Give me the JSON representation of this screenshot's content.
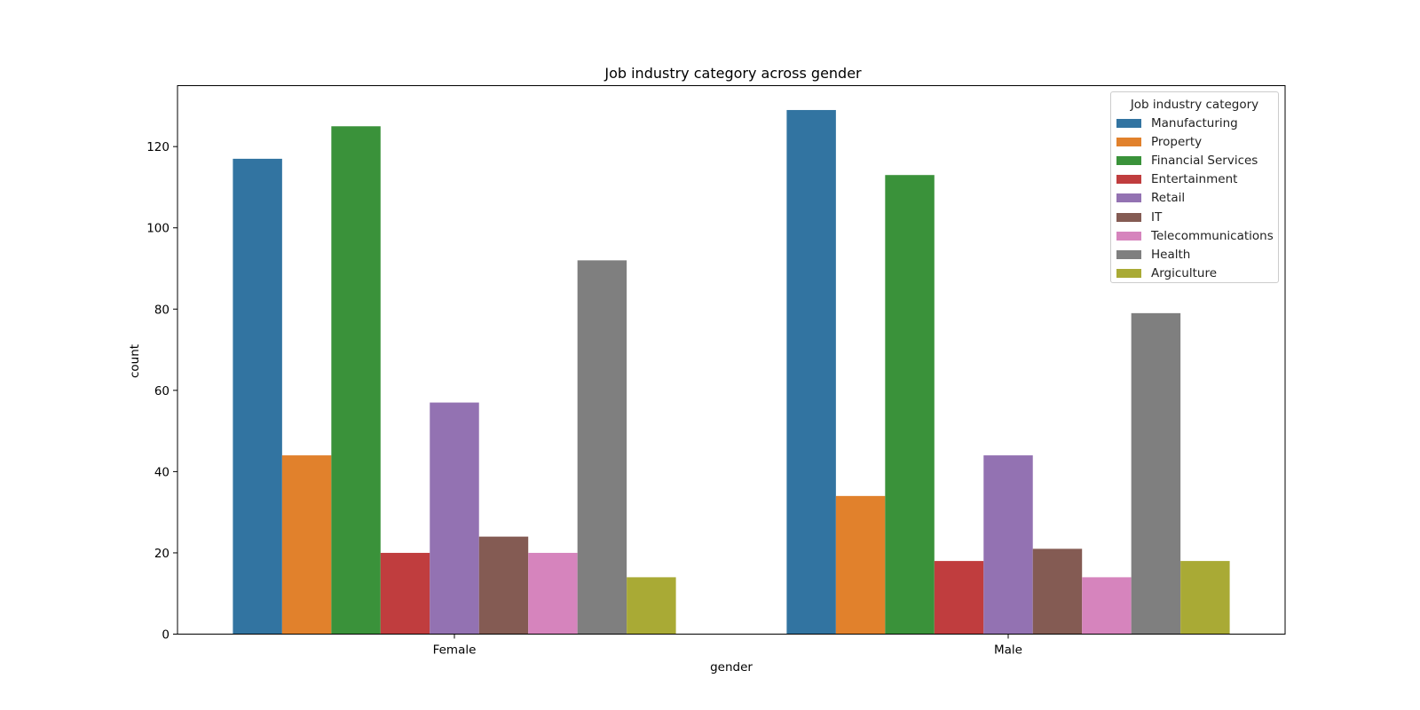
{
  "chart_data": {
    "type": "bar",
    "title": "Job industry category across gender",
    "xlabel": "gender",
    "ylabel": "count",
    "categories": [
      "Female",
      "Male"
    ],
    "ylim": [
      0,
      135
    ],
    "yticks": [
      0,
      20,
      40,
      60,
      80,
      100,
      120
    ],
    "legend": {
      "title": "Job industry category",
      "position": "top-right"
    },
    "grid": false,
    "series": [
      {
        "name": "Manufacturing",
        "color": "#3274a1",
        "values": [
          117,
          129
        ]
      },
      {
        "name": "Property",
        "color": "#e1812c",
        "values": [
          44,
          34
        ]
      },
      {
        "name": "Financial Services",
        "color": "#3a923a",
        "values": [
          125,
          113
        ]
      },
      {
        "name": "Entertainment",
        "color": "#c03d3e",
        "values": [
          20,
          18
        ]
      },
      {
        "name": "Retail",
        "color": "#9372b2",
        "values": [
          57,
          44
        ]
      },
      {
        "name": "IT",
        "color": "#845b53",
        "values": [
          24,
          21
        ]
      },
      {
        "name": "Telecommunications",
        "color": "#d684bd",
        "values": [
          20,
          14
        ]
      },
      {
        "name": "Health",
        "color": "#7f7f7f",
        "values": [
          92,
          79
        ]
      },
      {
        "name": "Argiculture",
        "color": "#a9aa35",
        "values": [
          14,
          18
        ]
      }
    ]
  }
}
